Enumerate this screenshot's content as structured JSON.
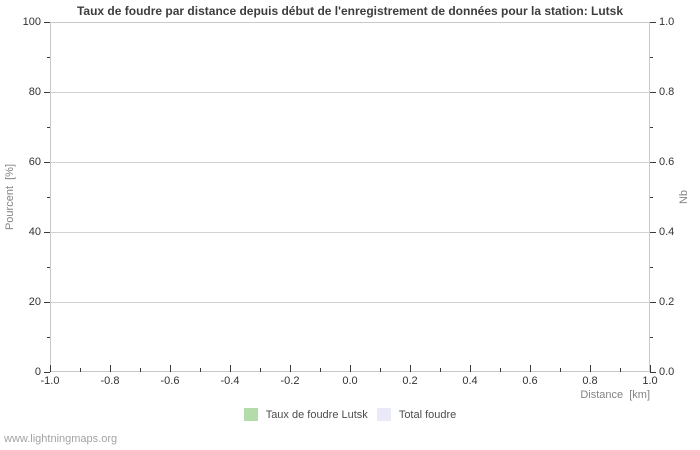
{
  "page": {
    "watermark": "www.lightningmaps.org"
  },
  "chart_data": {
    "type": "line",
    "title": "Taux de foudre par distance depuis début de l'enregistrement de données pour la station: Lutsk",
    "no_data_plotted": true,
    "grid": "horizontal-only",
    "legend_position": "bottom-center",
    "colors": {
      "plot_border": "#c9c9c9",
      "gridline": "#d2d2d2",
      "tick": "#3a3a3a"
    },
    "x_axis": {
      "label": "Distance  [km]",
      "range": [
        -1.0,
        1.0
      ],
      "minor_step": 0.1,
      "major_ticks": [
        {
          "value": -1.0,
          "label": "-1.0"
        },
        {
          "value": -0.8,
          "label": "-0.8"
        },
        {
          "value": -0.6,
          "label": "-0.6"
        },
        {
          "value": -0.4,
          "label": "-0.4"
        },
        {
          "value": -0.2,
          "label": "-0.2"
        },
        {
          "value": 0.0,
          "label": "0.0"
        },
        {
          "value": 0.2,
          "label": "0.2"
        },
        {
          "value": 0.4,
          "label": "0.4"
        },
        {
          "value": 0.6,
          "label": "0.6"
        },
        {
          "value": 0.8,
          "label": "0.8"
        },
        {
          "value": 1.0,
          "label": "1.0"
        }
      ]
    },
    "y_axis_left": {
      "label": "Pourcent  [%]",
      "range": [
        0,
        100
      ],
      "minor_step": 10,
      "major_ticks": [
        {
          "value": 0,
          "label": "0"
        },
        {
          "value": 20,
          "label": "20"
        },
        {
          "value": 40,
          "label": "40"
        },
        {
          "value": 60,
          "label": "60"
        },
        {
          "value": 80,
          "label": "80"
        },
        {
          "value": 100,
          "label": "100"
        }
      ]
    },
    "y_axis_right": {
      "label": "Nb",
      "range": [
        0.0,
        1.0
      ],
      "minor_step": 0.1,
      "major_ticks": [
        {
          "value": 0.0,
          "label": "0.0"
        },
        {
          "value": 0.2,
          "label": "0.2"
        },
        {
          "value": 0.4,
          "label": "0.4"
        },
        {
          "value": 0.6,
          "label": "0.6"
        },
        {
          "value": 0.8,
          "label": "0.8"
        },
        {
          "value": 1.0,
          "label": "1.0"
        }
      ]
    },
    "series": [
      {
        "name": "Taux de foudre Lutsk",
        "color": "#b4dcab",
        "values": []
      },
      {
        "name": "Total foudre",
        "color": "#e9e9f8",
        "values": []
      }
    ]
  }
}
